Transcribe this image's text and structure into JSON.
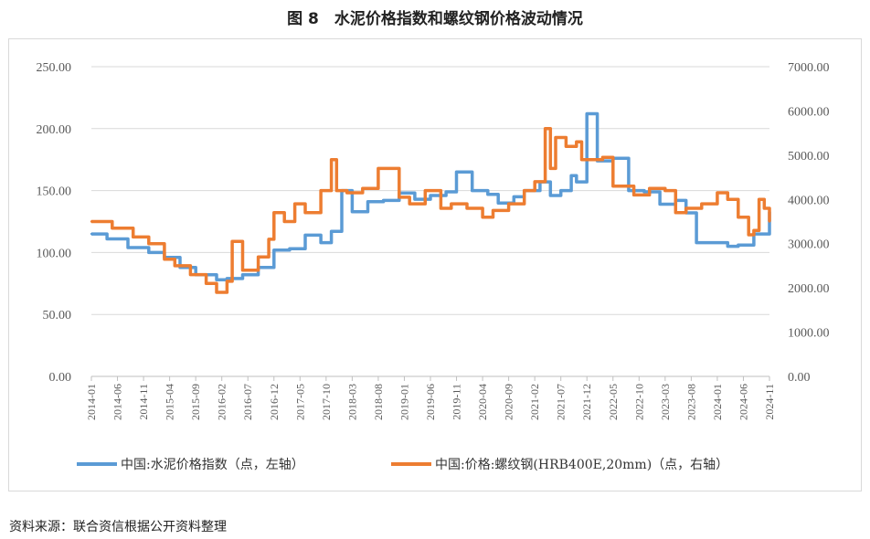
{
  "figure": {
    "title": "图 8　水泥价格指数和螺纹钢价格波动情况",
    "source": "资料来源：联合资信根据公开资料整理"
  },
  "colors": {
    "cement": "#5b9bd5",
    "steel": "#ed7d31",
    "grid": "#d9d9d9",
    "axis": "#bfbfbf"
  },
  "chart_data": {
    "type": "line",
    "left_axis": {
      "ticks": [
        "250.00",
        "200.00",
        "150.00",
        "100.00",
        "50.00",
        "0.00"
      ],
      "range": [
        0,
        250
      ]
    },
    "right_axis": {
      "ticks": [
        "7000.00",
        "6000.00",
        "5000.00",
        "4000.00",
        "3000.00",
        "2000.00",
        "1000.00",
        "0.00"
      ],
      "range": [
        0,
        7000
      ]
    },
    "x_labels": [
      "2014-01",
      "2014-06",
      "2014-11",
      "2015-04",
      "2015-09",
      "2016-02",
      "2016-07",
      "2016-12",
      "2017-05",
      "2017-10",
      "2018-03",
      "2018-08",
      "2019-01",
      "2019-06",
      "2019-11",
      "2020-04",
      "2020-09",
      "2021-02",
      "2021-07",
      "2021-12",
      "2022-05",
      "2022-10",
      "2023-03",
      "2023-08",
      "2024-01",
      "2024-06",
      "2024-11"
    ],
    "series": [
      {
        "name": "中国:水泥价格指数（点，左轴）",
        "axis": "left",
        "x": [
          "2014-01",
          "2014-04",
          "2014-08",
          "2014-12",
          "2015-03",
          "2015-06",
          "2015-09",
          "2016-01",
          "2016-03",
          "2016-06",
          "2016-09",
          "2016-12",
          "2017-03",
          "2017-06",
          "2017-09",
          "2017-11",
          "2018-01",
          "2018-03",
          "2018-06",
          "2018-09",
          "2018-12",
          "2019-03",
          "2019-06",
          "2019-09",
          "2019-11",
          "2020-02",
          "2020-05",
          "2020-07",
          "2020-10",
          "2020-12",
          "2021-03",
          "2021-05",
          "2021-07",
          "2021-09",
          "2021-10",
          "2021-12",
          "2022-02",
          "2022-05",
          "2022-08",
          "2022-11",
          "2023-02",
          "2023-05",
          "2023-07",
          "2023-09",
          "2023-12",
          "2024-03",
          "2024-05",
          "2024-08",
          "2024-11"
        ],
        "values": [
          115,
          111,
          104,
          100,
          96,
          88,
          82,
          78,
          79,
          82,
          88,
          102,
          103,
          114,
          108,
          117,
          150,
          133,
          141,
          142,
          148,
          143,
          146,
          149,
          165,
          150,
          147,
          140,
          145,
          150,
          157,
          146,
          150,
          162,
          157,
          212,
          174,
          176,
          150,
          149,
          139,
          142,
          132,
          108,
          108,
          105,
          106,
          115,
          133
        ]
      },
      {
        "name": "中国:价格:螺纹钢(HRB400E,20mm)（点，右轴）",
        "axis": "right",
        "x": [
          "2014-01",
          "2014-05",
          "2014-09",
          "2014-12",
          "2015-03",
          "2015-05",
          "2015-08",
          "2015-11",
          "2016-01",
          "2016-03",
          "2016-04",
          "2016-06",
          "2016-09",
          "2016-11",
          "2016-12",
          "2017-02",
          "2017-04",
          "2017-06",
          "2017-09",
          "2017-11",
          "2017-12",
          "2018-02",
          "2018-05",
          "2018-08",
          "2018-10",
          "2018-12",
          "2019-02",
          "2019-05",
          "2019-08",
          "2019-10",
          "2020-01",
          "2020-04",
          "2020-06",
          "2020-09",
          "2020-12",
          "2021-02",
          "2021-04",
          "2021-05",
          "2021-06",
          "2021-08",
          "2021-10",
          "2021-11",
          "2021-12",
          "2022-03",
          "2022-05",
          "2022-07",
          "2022-09",
          "2022-12",
          "2023-03",
          "2023-05",
          "2023-07",
          "2023-10",
          "2024-01",
          "2024-03",
          "2024-05",
          "2024-07",
          "2024-08",
          "2024-09",
          "2024-10",
          "2024-11"
        ],
        "values": [
          3500,
          3350,
          3150,
          3000,
          2650,
          2500,
          2300,
          2100,
          1900,
          2150,
          3050,
          2400,
          2700,
          3100,
          3700,
          3500,
          3900,
          3700,
          4200,
          4900,
          4200,
          4150,
          4250,
          4700,
          4700,
          4050,
          3900,
          4200,
          3800,
          3900,
          3800,
          3600,
          3750,
          3900,
          4200,
          4400,
          5600,
          4700,
          5400,
          5200,
          5300,
          4900,
          4900,
          4950,
          4300,
          4300,
          4100,
          4250,
          4200,
          3700,
          3800,
          3900,
          4150,
          4000,
          3600,
          3200,
          3300,
          4000,
          3800,
          3500
        ]
      }
    ],
    "legend_position": "bottom"
  }
}
